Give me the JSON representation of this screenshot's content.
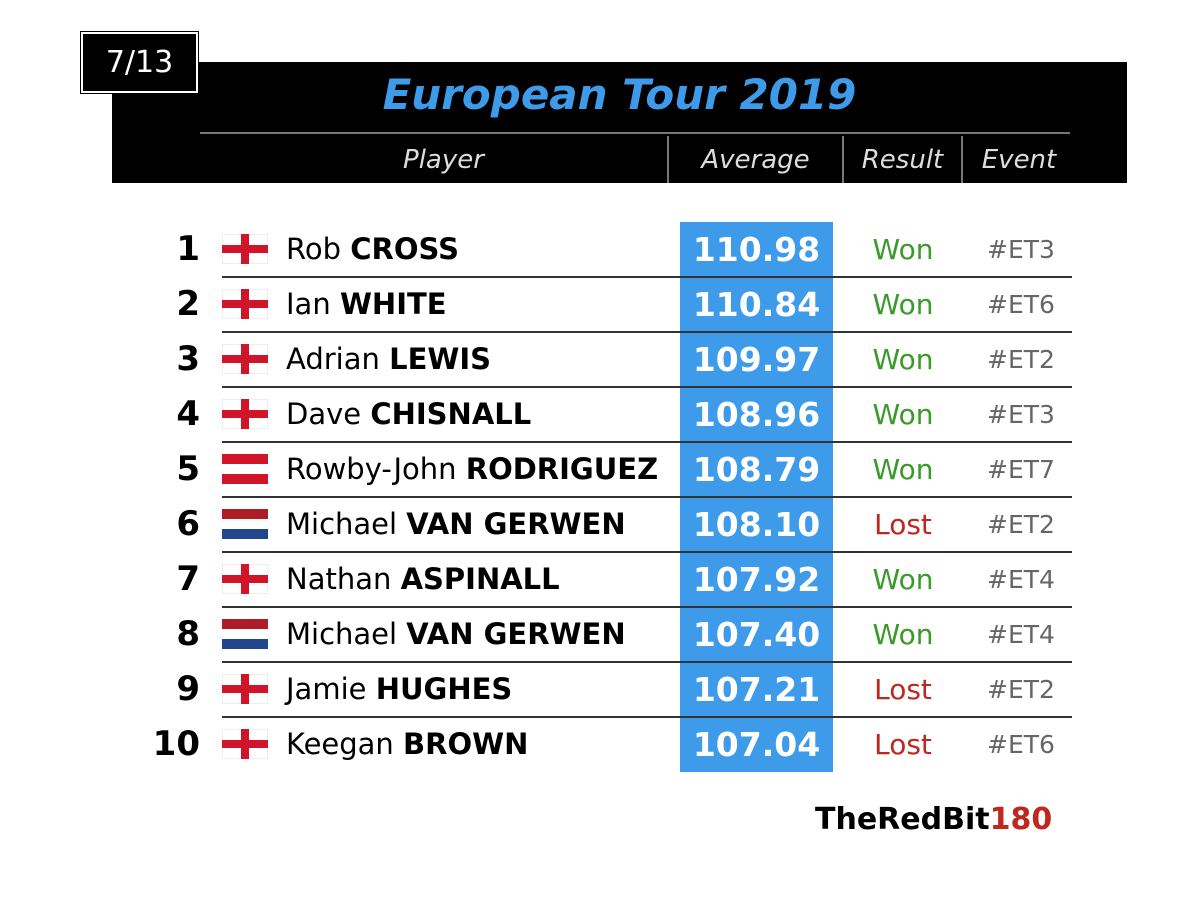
{
  "badge": "7/13",
  "title": "European Tour 2019",
  "table": {
    "headers": [
      "Player",
      "Average",
      "Result",
      "Event"
    ],
    "rows": [
      {
        "rank": 1,
        "first": "Rob",
        "last": "CROSS",
        "average": "110.98",
        "result": "Won",
        "event": "#ET3"
      },
      {
        "rank": 2,
        "first": "Ian",
        "last": "WHITE",
        "average": "110.84",
        "result": "Won",
        "event": "#ET6"
      },
      {
        "rank": 3,
        "first": "Adrian",
        "last": "LEWIS",
        "average": "109.97",
        "result": "Won",
        "event": "#ET2"
      },
      {
        "rank": 4,
        "first": "Dave",
        "last": "CHISNALL",
        "average": "108.96",
        "result": "Won",
        "event": "#ET3"
      },
      {
        "rank": 5,
        "first": "Rowby-John",
        "last": "RODRIGUEZ",
        "average": "108.79",
        "result": "Won",
        "event": "#ET7"
      },
      {
        "rank": 6,
        "first": "Michael",
        "last": "VAN GERWEN",
        "average": "108.10",
        "result": "Lost",
        "event": "#ET2"
      },
      {
        "rank": 7,
        "first": "Nathan",
        "last": "ASPINALL",
        "average": "107.92",
        "result": "Won",
        "event": "#ET4"
      },
      {
        "rank": 8,
        "first": "Michael",
        "last": "VAN GERWEN",
        "average": "107.40",
        "result": "Won",
        "event": "#ET4"
      },
      {
        "rank": 9,
        "first": "Jamie",
        "last": "HUGHES",
        "average": "107.21",
        "result": "Lost",
        "event": "#ET2"
      },
      {
        "rank": 10,
        "first": "Keegan",
        "last": "BROWN",
        "average": "107.04",
        "result": "Lost",
        "event": "#ET6"
      }
    ]
  },
  "footer": {
    "brand": "TheRedBit",
    "brand_number": "180"
  }
}
